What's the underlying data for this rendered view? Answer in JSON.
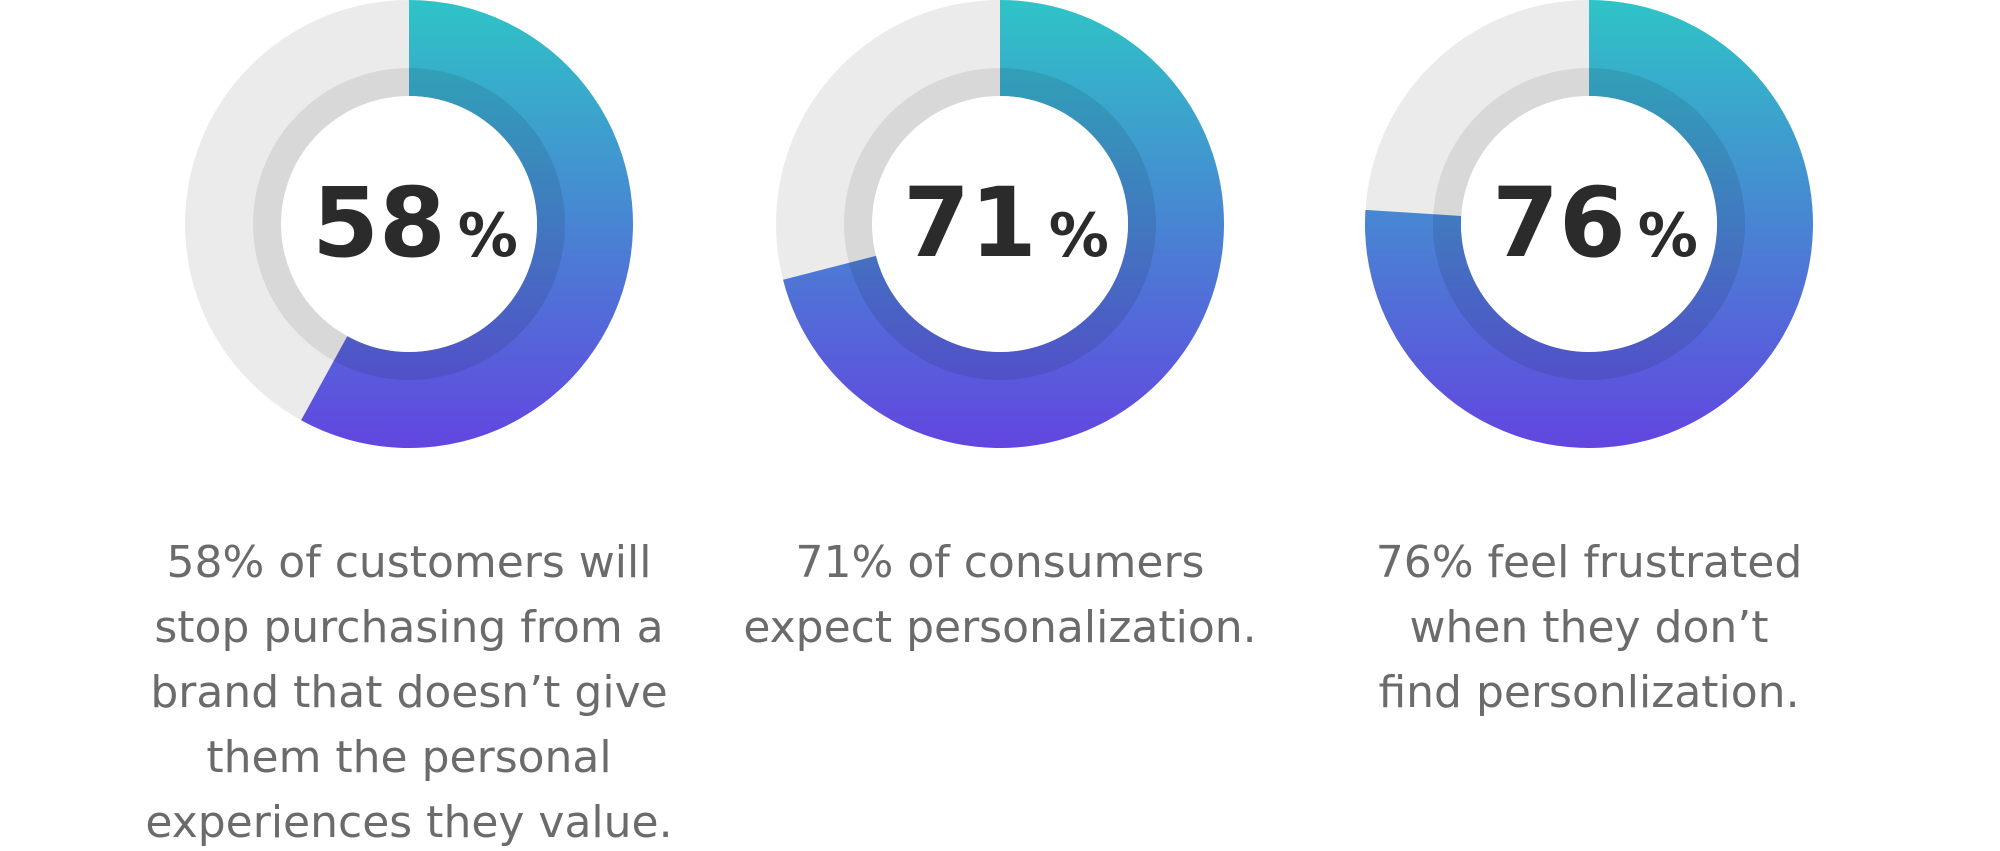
{
  "chart_data": [
    {
      "type": "donut",
      "values": [
        58
      ],
      "value_labels": [
        "58"
      ],
      "unit": "%",
      "colors": [
        "#2ec4c6",
        "#6245e0"
      ],
      "caption": [
        "58% of customers will",
        "stop purchasing from a",
        "brand that doesn’t give",
        "them the personal",
        "experiences they value."
      ]
    },
    {
      "type": "donut",
      "values": [
        71
      ],
      "value_labels": [
        "71"
      ],
      "unit": "%",
      "colors": [
        "#2ec4c6",
        "#6245e0"
      ],
      "caption": [
        "71% of consumers",
        "expect personalization."
      ]
    },
    {
      "type": "donut",
      "values": [
        76
      ],
      "value_labels": [
        "76"
      ],
      "unit": "%",
      "colors": [
        "#2ec4c6",
        "#6245e0"
      ],
      "caption": [
        "76% feel frustrated",
        "when they don’t",
        "find personlization."
      ]
    }
  ]
}
